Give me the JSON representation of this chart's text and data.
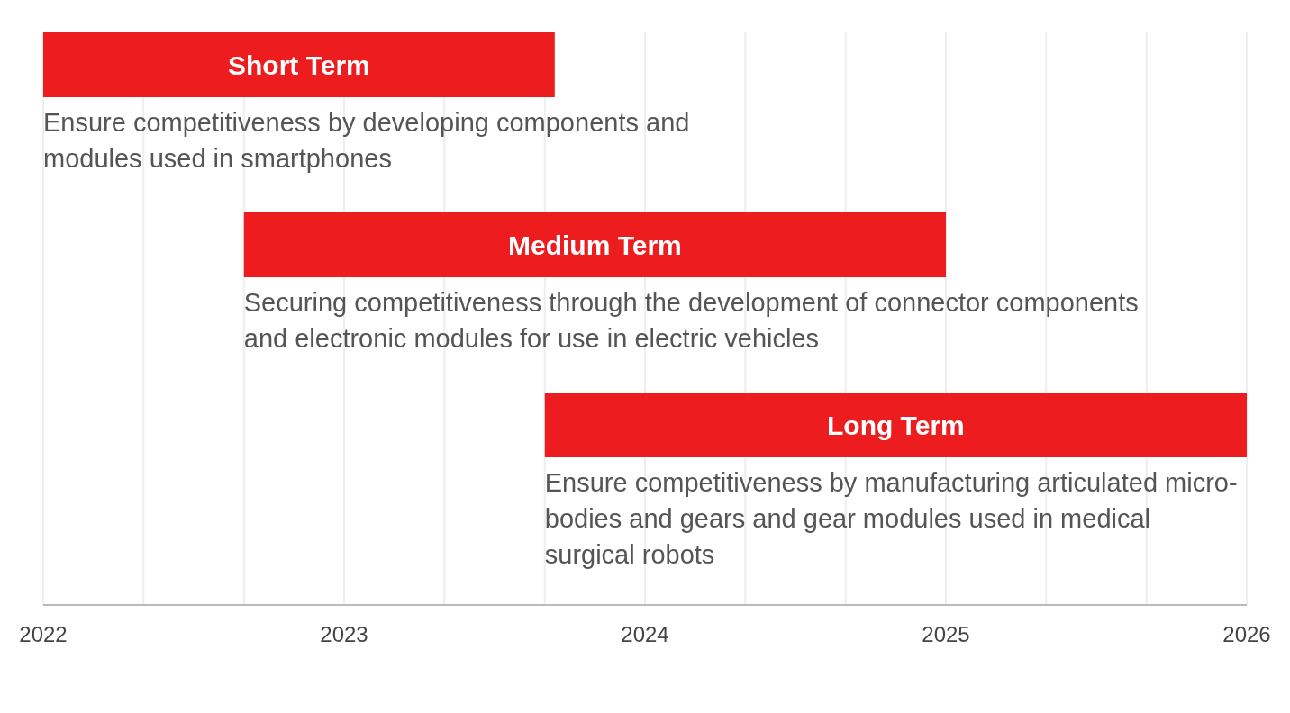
{
  "chart_data": {
    "type": "bar",
    "orientation": "horizontal",
    "categories": [
      "Short Term",
      "Medium Term",
      "Long Term"
    ],
    "base": [
      2022,
      2022.667,
      2023.667
    ],
    "values": [
      1.7,
      2.333,
      2.333
    ],
    "color": "#ed1c1e",
    "xlim": [
      2022,
      2026
    ],
    "xticks": [
      2022,
      {
        "value": 2022.333,
        "label": null
      },
      {
        "value": 2022.667,
        "label": null
      },
      2023,
      {
        "value": 2023.333,
        "label": null
      },
      {
        "value": 2023.667,
        "label": null
      },
      2024,
      {
        "value": 2024.333,
        "label": null
      },
      {
        "value": 2024.667,
        "label": null
      },
      2025,
      {
        "value": 2025.333,
        "label": null
      },
      {
        "value": 2025.667,
        "label": null
      },
      2026
    ],
    "grid": "x",
    "tick_labels": "x",
    "annotations": [
      {
        "text": "Ensure competitiveness by developing components and modules used in smartphones",
        "x": 2022,
        "y": "Short Term"
      },
      {
        "text": "Securing competitiveness through the development of connector components and electronic modules for use in electric vehicles",
        "x": 2022.667,
        "y": "Medium Term"
      },
      {
        "text": "Ensure competitiveness by manufacturing articulated micro-bodies and gears and gear modules used in medical surgical robots",
        "x": 2023.667,
        "y": "Long Term"
      }
    ]
  }
}
